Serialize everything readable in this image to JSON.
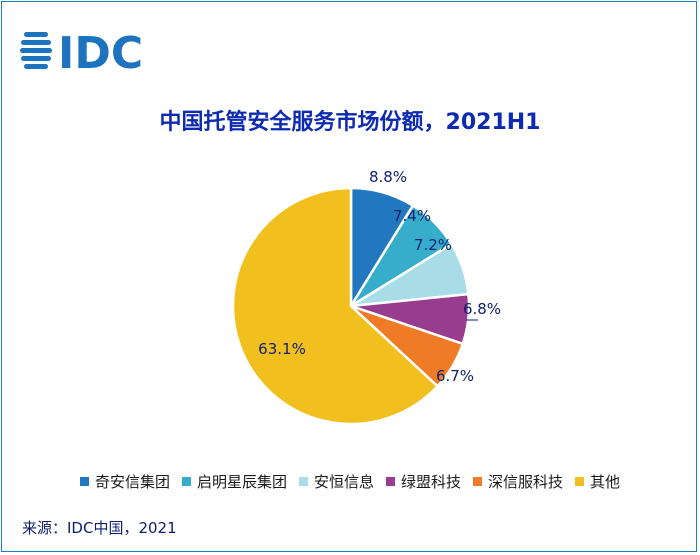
{
  "logo": {
    "text": "IDC"
  },
  "chart_data": {
    "type": "pie",
    "title": "中国托管安全服务市场份额，2021H1",
    "slices": [
      {
        "label": "奇安信集团",
        "value": 8.8,
        "display": "8.8%",
        "color": "#2178bf"
      },
      {
        "label": "启明星辰集团",
        "value": 7.4,
        "display": "7.4%",
        "color": "#36aecb"
      },
      {
        "label": "安恒信息",
        "value": 7.2,
        "display": "7.2%",
        "color": "#a8dce7"
      },
      {
        "label": "绿盟科技",
        "value": 6.8,
        "display": "6.8%",
        "color": "#983c8f"
      },
      {
        "label": "深信服科技",
        "value": 6.7,
        "display": "6.7%",
        "color": "#f07b26"
      },
      {
        "label": "其他",
        "value": 63.1,
        "display": "63.1%",
        "color": "#f2c01e"
      }
    ],
    "legend_position": "bottom"
  },
  "source": "来源：IDC中国，2021"
}
